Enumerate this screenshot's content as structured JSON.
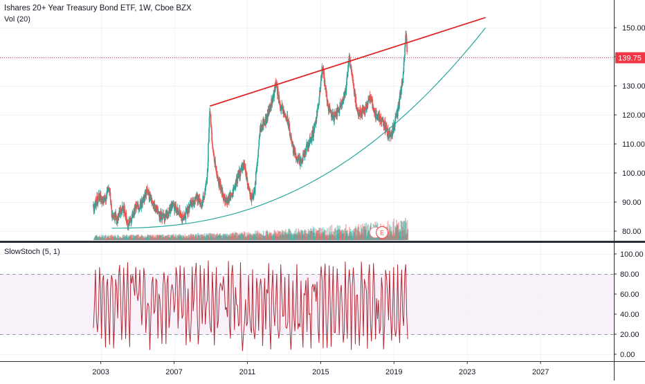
{
  "header": {
    "title": "Ishares 20+ Year Treasury Bond ETF, 1W, Cboe BZX",
    "volume_label": "Vol (20)",
    "stoch_label": "SlowStoch (5, 1)"
  },
  "price_marker": {
    "value": "139.75",
    "color": "#f23645"
  },
  "event_markers": [
    "E"
  ],
  "colors": {
    "up": "#26a69a",
    "down": "#ef5350",
    "trendline": "#e02424",
    "curve": "#26a69a",
    "stoch": "#b22833",
    "band": "#f3e5f5"
  },
  "chart_data": [
    {
      "type": "candlestick",
      "title": "Ishares 20+ Year Treasury Bond ETF, 1W, Cboe BZX",
      "x_ticks": [
        "2003",
        "2007",
        "2011",
        "2015",
        "2019",
        "2023",
        "2027"
      ],
      "y_ticks": [
        "150.00",
        "140.00",
        "130.00",
        "120.00",
        "110.00",
        "100.00",
        "90.00",
        "80.00"
      ],
      "ylim": [
        76,
        156
      ],
      "xlim": [
        1997.5,
        2031
      ],
      "last_price": 139.75,
      "price_path": [
        [
          2002.6,
          88
        ],
        [
          2002.9,
          92
        ],
        [
          2003.2,
          90
        ],
        [
          2003.45,
          96
        ],
        [
          2003.6,
          86
        ],
        [
          2003.9,
          84
        ],
        [
          2004.2,
          89
        ],
        [
          2004.5,
          82
        ],
        [
          2004.9,
          88
        ],
        [
          2005.3,
          90
        ],
        [
          2005.5,
          94
        ],
        [
          2005.9,
          89
        ],
        [
          2006.2,
          86
        ],
        [
          2006.5,
          84
        ],
        [
          2006.9,
          89
        ],
        [
          2007.3,
          86
        ],
        [
          2007.5,
          84
        ],
        [
          2007.9,
          89
        ],
        [
          2008.2,
          92
        ],
        [
          2008.5,
          89
        ],
        [
          2008.8,
          97
        ],
        [
          2008.95,
          123
        ],
        [
          2009.1,
          108
        ],
        [
          2009.4,
          98
        ],
        [
          2009.8,
          90
        ],
        [
          2010.1,
          92
        ],
        [
          2010.5,
          99
        ],
        [
          2010.8,
          103
        ],
        [
          2011.2,
          91
        ],
        [
          2011.4,
          94
        ],
        [
          2011.7,
          116
        ],
        [
          2012.0,
          118
        ],
        [
          2012.4,
          126
        ],
        [
          2012.55,
          131
        ],
        [
          2012.8,
          123
        ],
        [
          2013.2,
          118
        ],
        [
          2013.5,
          108
        ],
        [
          2013.9,
          103
        ],
        [
          2014.2,
          108
        ],
        [
          2014.6,
          114
        ],
        [
          2014.9,
          124
        ],
        [
          2015.1,
          137
        ],
        [
          2015.4,
          123
        ],
        [
          2015.7,
          119
        ],
        [
          2016.0,
          122
        ],
        [
          2016.4,
          129
        ],
        [
          2016.55,
          141
        ],
        [
          2016.8,
          130
        ],
        [
          2017.0,
          120
        ],
        [
          2017.4,
          122
        ],
        [
          2017.7,
          126
        ],
        [
          2018.0,
          120
        ],
        [
          2018.4,
          118
        ],
        [
          2018.7,
          113
        ],
        [
          2018.9,
          114
        ],
        [
          2019.2,
          121
        ],
        [
          2019.5,
          133
        ],
        [
          2019.65,
          148
        ],
        [
          2019.75,
          139.75
        ]
      ]
    },
    {
      "type": "line",
      "title": "SlowStoch (5, 1)",
      "y_ticks": [
        "100.00",
        "80.00",
        "60.00",
        "40.00",
        "20.00",
        "0.00"
      ],
      "ylim": [
        -3,
        104
      ],
      "bands": [
        20,
        80
      ],
      "x_range": [
        2002.6,
        2019.75
      ],
      "oscillations": 78
    }
  ]
}
